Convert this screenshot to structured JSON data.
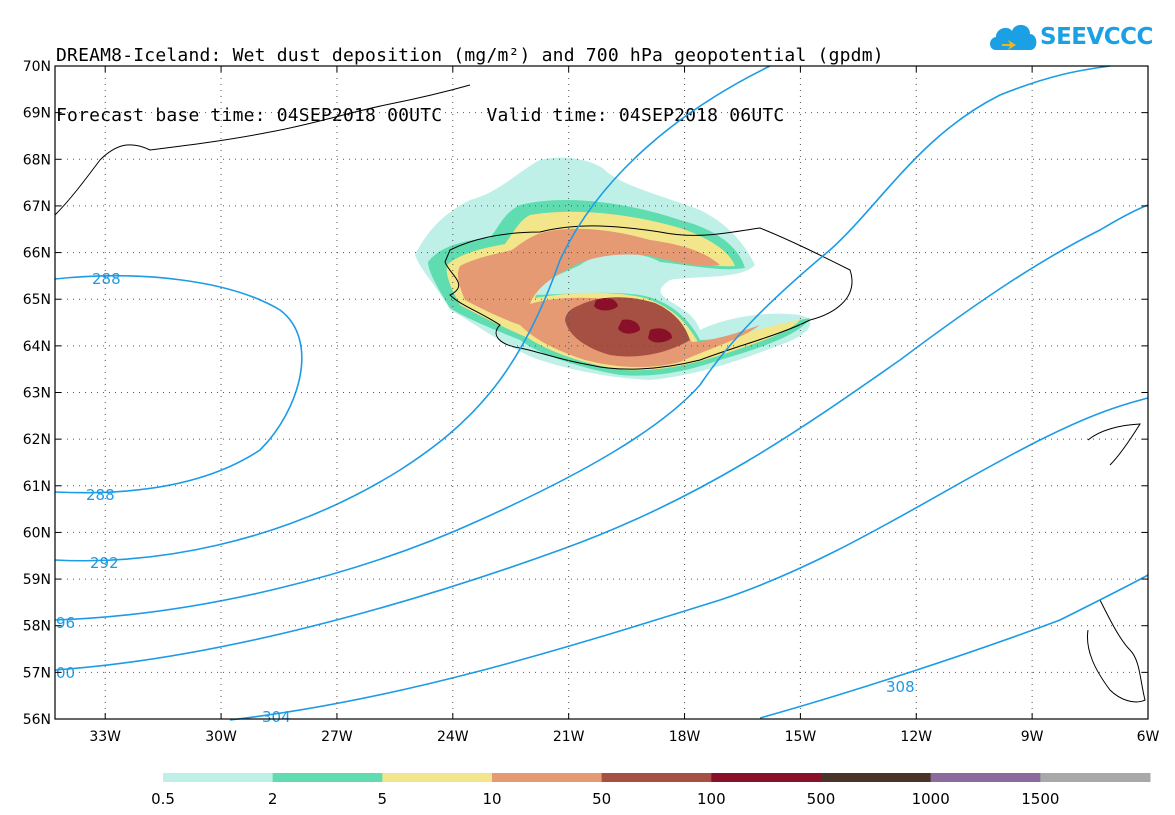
{
  "header": {
    "line1": "DREAM8-Iceland: Wet dust deposition (mg/m²) and 700 hPa geopotential (gpdm)",
    "line2": "Forecast base time: 04SEP2018 00UTC    Valid time: 04SEP2018 06UTC"
  },
  "logo": {
    "text": "SEEVCCC",
    "icon": "cloud-icon",
    "color": "#1aa0e3"
  },
  "map": {
    "lat_labels": [
      "70N",
      "69N",
      "68N",
      "67N",
      "66N",
      "65N",
      "64N",
      "63N",
      "62N",
      "61N",
      "60N",
      "59N",
      "58N",
      "57N",
      "56N"
    ],
    "lon_labels": [
      "33W",
      "30W",
      "27W",
      "24W",
      "21W",
      "18W",
      "15W",
      "12W",
      "9W",
      "6W"
    ],
    "lat_range": [
      56,
      70
    ],
    "lon_range": [
      -34.3,
      -6
    ],
    "grid": true,
    "contour_color": "#1c9be6",
    "contour_labels": [
      "288",
      "288",
      "292",
      "96",
      "00",
      "304",
      "308"
    ]
  },
  "legend": {
    "bins": [
      {
        "color": "#bff0e8"
      },
      {
        "color": "#5fdcb0"
      },
      {
        "color": "#f3e58a"
      },
      {
        "color": "#e59a74"
      },
      {
        "color": "#a55042"
      },
      {
        "color": "#8a0f29"
      },
      {
        "color": "#4a3428"
      },
      {
        "color": "#8c6a9e"
      },
      {
        "color": "#a8a8a8"
      }
    ],
    "labels": [
      "0.5",
      "2",
      "5",
      "10",
      "50",
      "100",
      "500",
      "1000",
      "1500"
    ]
  }
}
